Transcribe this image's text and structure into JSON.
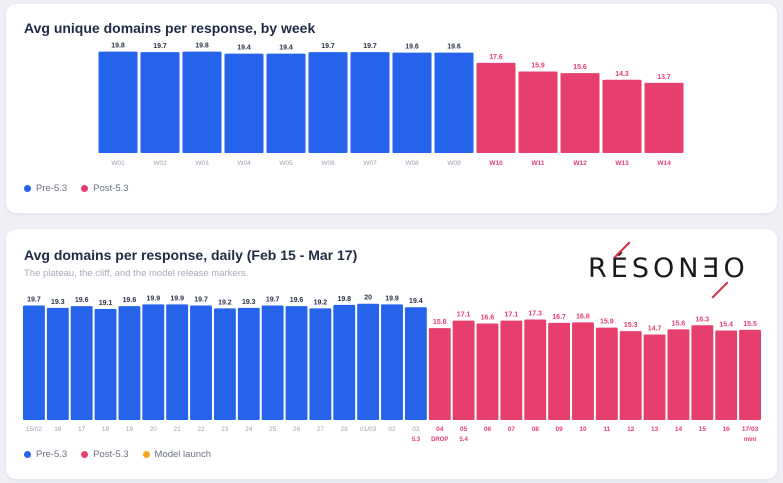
{
  "colors": {
    "pre": "#2563eb",
    "post": "#e63e6d",
    "launch": "#f5a623"
  },
  "weekly": {
    "title": "Avg unique domains per response, by week",
    "legend": [
      {
        "label": "Pre-5.3",
        "color": "#2563eb"
      },
      {
        "label": "Post-5.3",
        "color": "#e63e6d"
      }
    ]
  },
  "daily": {
    "title": "Avg domains per response, daily (Feb 15 - Mar 17)",
    "subtitle": "The plateau, the cliff, and the model release markers.",
    "legend": [
      {
        "label": "Pre-5.3",
        "color": "#2563eb"
      },
      {
        "label": "Post-5.3",
        "color": "#e63e6d"
      },
      {
        "label": "Model launch",
        "color": "#f5a623"
      }
    ]
  },
  "logo": {
    "text": "RÉSONƎO"
  },
  "chart_data": [
    {
      "type": "bar",
      "title": "Avg unique domains per response, by week",
      "categories": [
        "W01",
        "W02",
        "W03",
        "W04",
        "W05",
        "W06",
        "W07",
        "W08",
        "W09",
        "W10",
        "W11",
        "W12",
        "W13",
        "W14"
      ],
      "values": [
        19.8,
        19.7,
        19.8,
        19.4,
        19.4,
        19.7,
        19.7,
        19.6,
        19.6,
        17.6,
        15.9,
        15.6,
        14.3,
        13.7
      ],
      "groups": [
        "pre",
        "pre",
        "pre",
        "pre",
        "pre",
        "pre",
        "pre",
        "pre",
        "pre",
        "post",
        "post",
        "post",
        "post",
        "post"
      ],
      "labels": [
        "19.8",
        "19.7",
        "19.8",
        "19.4",
        "19.4",
        "19.7",
        "19.7",
        "19.6",
        "19.6",
        "17.6",
        "15.9",
        "15.6",
        "14.3",
        "13.7"
      ],
      "ylim": [
        0,
        20.5
      ],
      "legend": "bottom-left",
      "grid": false
    },
    {
      "type": "bar",
      "title": "Avg domains per response, daily (Feb 15 - Mar 17)",
      "categories": [
        "15/02",
        "16",
        "17",
        "18",
        "19",
        "20",
        "21",
        "22",
        "23",
        "24",
        "25",
        "26",
        "27",
        "28",
        "01/03",
        "02",
        "03",
        "04",
        "05",
        "06",
        "07",
        "08",
        "09",
        "10",
        "11",
        "12",
        "13",
        "14",
        "15",
        "16",
        "17/03"
      ],
      "sublabels": [
        "",
        "",
        "",
        "",
        "",
        "",
        "",
        "",
        "",
        "",
        "",
        "",
        "",
        "",
        "",
        "",
        "5.3",
        "DROP",
        "5.4",
        "",
        "",
        "",
        "",
        "",
        "",
        "",
        "",
        "",
        "",
        "",
        "mini"
      ],
      "values": [
        19.7,
        19.3,
        19.6,
        19.1,
        19.6,
        19.9,
        19.9,
        19.7,
        19.2,
        19.3,
        19.7,
        19.6,
        19.2,
        19.8,
        20,
        19.9,
        19.4,
        15.8,
        17.1,
        16.6,
        17.1,
        17.3,
        16.7,
        16.8,
        15.9,
        15.3,
        14.7,
        15.6,
        16.3,
        15.4,
        15.5
      ],
      "labels": [
        "19.7",
        "19.3",
        "19.6",
        "19.1",
        "19.6",
        "19.9",
        "19.9",
        "19.7",
        "19.2",
        "19.3",
        "19.7",
        "19.6",
        "19.2",
        "19.8",
        "20",
        "19.9",
        "19.4",
        "15.8",
        "17.1",
        "16.6",
        "17.1",
        "17.3",
        "16.7",
        "16.8",
        "15.9",
        "15.3",
        "14.7",
        "15.6",
        "16.3",
        "15.4",
        "15.5"
      ],
      "groups": [
        "pre",
        "pre",
        "pre",
        "pre",
        "pre",
        "pre",
        "pre",
        "pre",
        "pre",
        "pre",
        "pre",
        "pre",
        "pre",
        "pre",
        "pre",
        "pre",
        "pre",
        "post",
        "post",
        "post",
        "post",
        "post",
        "post",
        "post",
        "post",
        "post",
        "post",
        "post",
        "post",
        "post",
        "post"
      ],
      "ylim": [
        0,
        20.3
      ],
      "legend": "bottom-left",
      "grid": false
    }
  ]
}
